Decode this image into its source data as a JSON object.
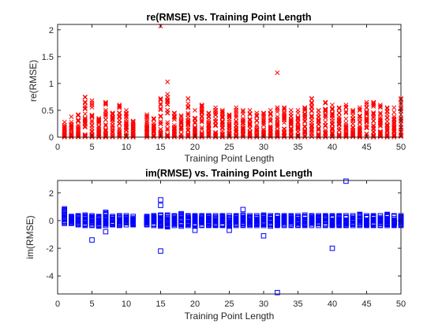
{
  "figure": {
    "background": "#ffffff"
  },
  "chart_data": [
    {
      "type": "scatter",
      "title": "re(RMSE) vs. Training Point Length",
      "xlabel": "Training Point Length",
      "ylabel": "re(RMSE)",
      "xlim": [
        0,
        50
      ],
      "ylim": [
        0,
        2.1
      ],
      "xticks": [
        0,
        5,
        10,
        15,
        20,
        25,
        30,
        35,
        40,
        45,
        50
      ],
      "yticks": [
        0,
        0.5,
        1,
        1.5,
        2
      ],
      "ytick_labels": [
        "0",
        "0.5",
        "1",
        "1.5",
        "2"
      ],
      "marker": "x",
      "color": "#ff0000",
      "grid": false,
      "note": "Each integer x from 1 to 50 (except 12) has a dense vertical column of samples; column maxima and outliers listed.",
      "columns": [
        {
          "x": 1,
          "max": 0.28
        },
        {
          "x": 2,
          "max": 0.38
        },
        {
          "x": 3,
          "max": 0.42
        },
        {
          "x": 4,
          "max": 0.75
        },
        {
          "x": 5,
          "max": 0.68
        },
        {
          "x": 6,
          "max": 0.35
        },
        {
          "x": 7,
          "max": 0.65
        },
        {
          "x": 8,
          "max": 0.45
        },
        {
          "x": 9,
          "max": 0.6
        },
        {
          "x": 10,
          "max": 0.5
        },
        {
          "x": 11,
          "max": 0.3
        },
        {
          "x": 13,
          "max": 0.42
        },
        {
          "x": 14,
          "max": 0.35
        },
        {
          "x": 15,
          "max": 0.72
        },
        {
          "x": 16,
          "max": 0.8
        },
        {
          "x": 17,
          "max": 0.45
        },
        {
          "x": 18,
          "max": 0.4
        },
        {
          "x": 19,
          "max": 0.72
        },
        {
          "x": 20,
          "max": 0.5
        },
        {
          "x": 21,
          "max": 0.6
        },
        {
          "x": 22,
          "max": 0.45
        },
        {
          "x": 23,
          "max": 0.55
        },
        {
          "x": 24,
          "max": 0.5
        },
        {
          "x": 25,
          "max": 0.42
        },
        {
          "x": 26,
          "max": 0.55
        },
        {
          "x": 27,
          "max": 0.5
        },
        {
          "x": 28,
          "max": 0.5
        },
        {
          "x": 29,
          "max": 0.45
        },
        {
          "x": 30,
          "max": 0.45
        },
        {
          "x": 31,
          "max": 0.5
        },
        {
          "x": 32,
          "max": 0.55
        },
        {
          "x": 33,
          "max": 0.55
        },
        {
          "x": 34,
          "max": 0.5
        },
        {
          "x": 35,
          "max": 0.5
        },
        {
          "x": 36,
          "max": 0.55
        },
        {
          "x": 37,
          "max": 0.72
        },
        {
          "x": 38,
          "max": 0.5
        },
        {
          "x": 39,
          "max": 0.65
        },
        {
          "x": 40,
          "max": 0.6
        },
        {
          "x": 41,
          "max": 0.55
        },
        {
          "x": 42,
          "max": 0.6
        },
        {
          "x": 43,
          "max": 0.5
        },
        {
          "x": 44,
          "max": 0.55
        },
        {
          "x": 45,
          "max": 0.65
        },
        {
          "x": 46,
          "max": 0.65
        },
        {
          "x": 47,
          "max": 0.6
        },
        {
          "x": 48,
          "max": 0.55
        },
        {
          "x": 49,
          "max": 0.55
        },
        {
          "x": 50,
          "max": 0.72
        }
      ],
      "outliers": [
        {
          "x": 15,
          "y": 2.07
        },
        {
          "x": 16,
          "y": 1.03
        },
        {
          "x": 32,
          "y": 1.2
        },
        {
          "x": 15,
          "y": 0.7
        },
        {
          "x": 37,
          "y": 0.72
        }
      ]
    },
    {
      "type": "scatter",
      "title": "im(RMSE) vs. Training Point Length",
      "xlabel": "Training Point Length",
      "ylabel": "im(RMSE)",
      "xlim": [
        0,
        50
      ],
      "ylim": [
        -5.3,
        2.9
      ],
      "xticks": [
        0,
        5,
        10,
        15,
        20,
        25,
        30,
        35,
        40,
        45,
        50
      ],
      "yticks": [
        -4,
        -2,
        0,
        2
      ],
      "ytick_labels": [
        "-4",
        "-2",
        "0",
        "2"
      ],
      "marker": "square",
      "color": "#0000ff",
      "grid": false,
      "note": "Each integer x from 1 to 50 (except 12) has a dense column of samples between about -0.4 and 0.4; outliers listed.",
      "columns": [
        {
          "x": 1,
          "low": -0.2,
          "high": 0.85
        },
        {
          "x": 2,
          "low": -0.2,
          "high": 0.3
        },
        {
          "x": 3,
          "low": -0.3,
          "high": 0.35
        },
        {
          "x": 4,
          "low": -0.35,
          "high": 0.4
        },
        {
          "x": 5,
          "low": -0.35,
          "high": 0.35
        },
        {
          "x": 6,
          "low": -0.4,
          "high": 0.3
        },
        {
          "x": 7,
          "low": -0.35,
          "high": 0.6
        },
        {
          "x": 8,
          "low": -0.3,
          "high": 0.3
        },
        {
          "x": 9,
          "low": -0.35,
          "high": 0.35
        },
        {
          "x": 10,
          "low": -0.3,
          "high": 0.35
        },
        {
          "x": 11,
          "low": -0.3,
          "high": 0.3
        },
        {
          "x": 13,
          "low": -0.3,
          "high": 0.3
        },
        {
          "x": 14,
          "low": -0.35,
          "high": 0.35
        },
        {
          "x": 15,
          "low": -0.4,
          "high": 0.4
        },
        {
          "x": 16,
          "low": -0.45,
          "high": 0.4
        },
        {
          "x": 17,
          "low": -0.35,
          "high": 0.35
        },
        {
          "x": 18,
          "low": -0.4,
          "high": 0.5
        },
        {
          "x": 19,
          "low": -0.35,
          "high": 0.35
        },
        {
          "x": 20,
          "low": -0.4,
          "high": 0.35
        },
        {
          "x": 21,
          "low": -0.35,
          "high": 0.35
        },
        {
          "x": 22,
          "low": -0.35,
          "high": 0.35
        },
        {
          "x": 23,
          "low": -0.35,
          "high": 0.35
        },
        {
          "x": 24,
          "low": -0.35,
          "high": 0.35
        },
        {
          "x": 25,
          "low": -0.4,
          "high": 0.35
        },
        {
          "x": 26,
          "low": -0.35,
          "high": 0.35
        },
        {
          "x": 27,
          "low": -0.35,
          "high": 0.4
        },
        {
          "x": 28,
          "low": -0.35,
          "high": 0.35
        },
        {
          "x": 29,
          "low": -0.35,
          "high": 0.35
        },
        {
          "x": 30,
          "low": -0.35,
          "high": 0.4
        },
        {
          "x": 31,
          "low": -0.4,
          "high": 0.35
        },
        {
          "x": 32,
          "low": -0.35,
          "high": 0.35
        },
        {
          "x": 33,
          "low": -0.35,
          "high": 0.35
        },
        {
          "x": 34,
          "low": -0.35,
          "high": 0.35
        },
        {
          "x": 35,
          "low": -0.35,
          "high": 0.35
        },
        {
          "x": 36,
          "low": -0.35,
          "high": 0.4
        },
        {
          "x": 37,
          "low": -0.35,
          "high": 0.35
        },
        {
          "x": 38,
          "low": -0.35,
          "high": 0.35
        },
        {
          "x": 39,
          "low": -0.35,
          "high": 0.35
        },
        {
          "x": 40,
          "low": -0.35,
          "high": 0.35
        },
        {
          "x": 41,
          "low": -0.35,
          "high": 0.35
        },
        {
          "x": 42,
          "low": -0.35,
          "high": 0.35
        },
        {
          "x": 43,
          "low": -0.35,
          "high": 0.35
        },
        {
          "x": 44,
          "low": -0.35,
          "high": 0.45
        },
        {
          "x": 45,
          "low": -0.35,
          "high": 0.35
        },
        {
          "x": 46,
          "low": -0.35,
          "high": 0.35
        },
        {
          "x": 47,
          "low": -0.35,
          "high": 0.35
        },
        {
          "x": 48,
          "low": -0.35,
          "high": 0.45
        },
        {
          "x": 49,
          "low": -0.35,
          "high": 0.35
        },
        {
          "x": 50,
          "low": -0.35,
          "high": 0.35
        }
      ],
      "outliers": [
        {
          "x": 5,
          "y": -1.4
        },
        {
          "x": 7,
          "y": -0.8
        },
        {
          "x": 15,
          "y": 1.5
        },
        {
          "x": 15,
          "y": 1.1
        },
        {
          "x": 15,
          "y": -2.2
        },
        {
          "x": 20,
          "y": -0.7
        },
        {
          "x": 25,
          "y": -0.7
        },
        {
          "x": 27,
          "y": 0.8
        },
        {
          "x": 30,
          "y": -1.1
        },
        {
          "x": 32,
          "y": -5.2
        },
        {
          "x": 40,
          "y": -2.0
        },
        {
          "x": 42,
          "y": 2.85
        }
      ]
    }
  ]
}
